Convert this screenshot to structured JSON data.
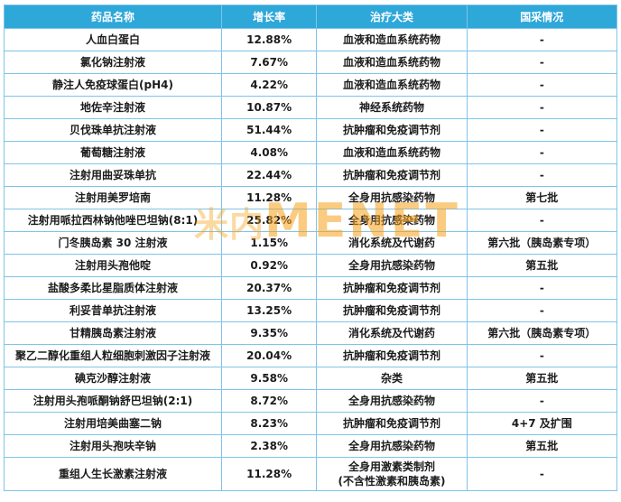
{
  "chart_data": {
    "type": "table",
    "columns": [
      "药品名称",
      "增长率",
      "治疗大类",
      "国采情况"
    ],
    "rows": [
      [
        "人血白蛋白",
        "12.88%",
        "血液和造血系统药物",
        "-"
      ],
      [
        "氯化钠注射液",
        "7.67%",
        "血液和造血系统药物",
        "-"
      ],
      [
        "静注人免疫球蛋白(pH4)",
        "4.22%",
        "血液和造血系统药物",
        "-"
      ],
      [
        "地佐辛注射液",
        "10.87%",
        "神经系统药物",
        "-"
      ],
      [
        "贝伐珠单抗注射液",
        "51.44%",
        "抗肿瘤和免疫调节剂",
        "-"
      ],
      [
        "葡萄糖注射液",
        "4.08%",
        "血液和造血系统药物",
        "-"
      ],
      [
        "注射用曲妥珠单抗",
        "22.44%",
        "抗肿瘤和免疫调节剂",
        "-"
      ],
      [
        "注射用美罗培南",
        "11.28%",
        "全身用抗感染药物",
        "第七批"
      ],
      [
        "注射用哌拉西林钠他唑巴坦钠(8:1)",
        "25.82%",
        "全身用抗感染药物",
        "-"
      ],
      [
        "门冬胰岛素 30 注射液",
        "1.15%",
        "消化系统及代谢药",
        "第六批（胰岛素专项）"
      ],
      [
        "注射用头孢他啶",
        "0.92%",
        "全身用抗感染药物",
        "第五批"
      ],
      [
        "盐酸多柔比星脂质体注射液",
        "20.37%",
        "抗肿瘤和免疫调节剂",
        "-"
      ],
      [
        "利妥昔单抗注射液",
        "13.25%",
        "抗肿瘤和免疫调节剂",
        "-"
      ],
      [
        "甘精胰岛素注射液",
        "9.35%",
        "消化系统及代谢药",
        "第六批（胰岛素专项）"
      ],
      [
        "聚乙二醇化重组人粒细胞刺激因子注射液",
        "20.04%",
        "抗肿瘤和免疫调节剂",
        "-"
      ],
      [
        "碘克沙醇注射液",
        "9.58%",
        "杂类",
        "第五批"
      ],
      [
        "注射用头孢哌酮钠舒巴坦钠(2:1)",
        "8.72%",
        "全身用抗感染药物",
        "-"
      ],
      [
        "注射用培美曲塞二钠",
        "8.23%",
        "抗肿瘤和免疫调节剂",
        "4+7 及扩围"
      ],
      [
        "注射用头孢呋辛钠",
        "2.38%",
        "全身用抗感染药物",
        "第五批"
      ],
      [
        "重组人生长激素注射液",
        "11.28%",
        "全身用激素类制剂\n(不含性激素和胰岛素)",
        "-"
      ]
    ]
  },
  "watermark": {
    "cn": "米内",
    "en": "MENET"
  },
  "colors": {
    "header_bg": "#2ea7d9",
    "border": "#7fc4e8",
    "watermark": "#f7a11a"
  }
}
